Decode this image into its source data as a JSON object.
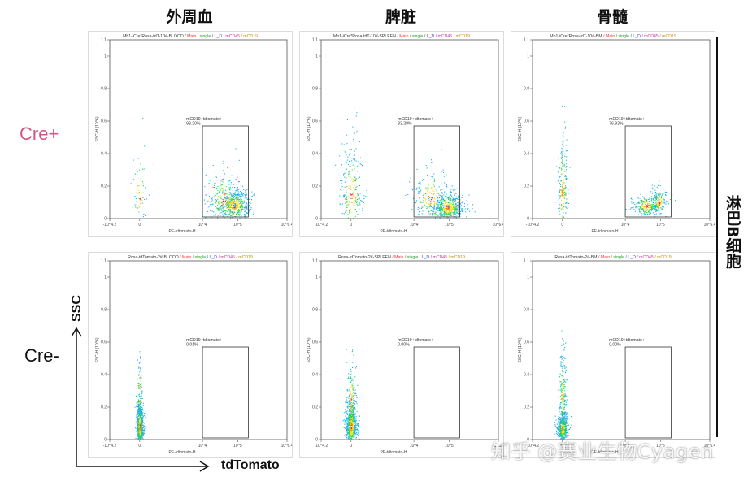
{
  "columns": [
    "外周血",
    "脾脏",
    "骨髓"
  ],
  "rows": [
    {
      "label": "Cre+",
      "color": "#d0568a"
    },
    {
      "label": "Cre-",
      "color": "#111111"
    }
  ],
  "side_label": "淋巴B细胞",
  "axis_labels": {
    "y": "SSC",
    "x": "tdTomato"
  },
  "watermark": "知乎 @赛业生物Cyagen",
  "chart_data": [
    {
      "type": "scatter",
      "title_parts": [
        "Mb1-iCre*Rosa-tdT-10#-BLOOD",
        " / Main",
        " / single",
        " / L_D",
        " / mCD45",
        " / mCD19"
      ],
      "xlabel": "PE-tdtomato-H",
      "ylabel": "SSC-H (10^6)",
      "gate_label": "mCD19+tdtomato+",
      "gate_pct": "98.20%",
      "gate_x": [
        10000,
        200000
      ],
      "gate_y": [
        0,
        0.57
      ],
      "xscale": "log",
      "xticks": [
        "-10^4.2",
        "0",
        "10^4",
        "10^5",
        "10^6.4"
      ],
      "yticks": [
        "0",
        "0.2",
        "0.4",
        "0.6",
        "0.8",
        "1",
        "1.1"
      ],
      "ylim": [
        0,
        1.1
      ],
      "populations": [
        {
          "x": 80000,
          "y": 0.08,
          "spread_x": 0.55,
          "spread_y": 0.06,
          "n": 520
        },
        {
          "x": 40000,
          "y": 0.12,
          "spread_x": 0.6,
          "spread_y": 0.1,
          "n": 220
        },
        {
          "x": 0,
          "y": 0.15,
          "spread_x": 0.25,
          "spread_y": 0.18,
          "n": 70
        }
      ]
    },
    {
      "type": "scatter",
      "title_parts": [
        "Mb1-iCre*Rosa-tdT-10#-SPLEEN",
        " / Main",
        " / single",
        " / L_D",
        " / mCD45",
        " / mCD19"
      ],
      "xlabel": "PE-tdtomato-H",
      "ylabel": "SSC-H (10^6)",
      "gate_label": "mCD19+tdtomato+",
      "gate_pct": "83.28%",
      "gate_x": [
        10000,
        200000
      ],
      "gate_y": [
        0,
        0.57
      ],
      "xscale": "log",
      "xticks": [
        "-10^4.2",
        "0",
        "10^4",
        "10^5",
        "10^6.4"
      ],
      "yticks": [
        "0",
        "0.2",
        "0.4",
        "0.6",
        "0.8",
        "1",
        "1.1"
      ],
      "ylim": [
        0,
        1.1
      ],
      "populations": [
        {
          "x": 90000,
          "y": 0.07,
          "spread_x": 0.55,
          "spread_y": 0.05,
          "n": 520
        },
        {
          "x": 0,
          "y": 0.15,
          "spread_x": 0.4,
          "spread_y": 0.18,
          "n": 260
        },
        {
          "x": 30000,
          "y": 0.13,
          "spread_x": 0.7,
          "spread_y": 0.1,
          "n": 200
        }
      ]
    },
    {
      "type": "scatter",
      "title_parts": [
        "Mb1-iCre*Rosa-tdT-10#-BM",
        " / Main",
        " / single",
        " / L_D",
        " / mCD45",
        " / mCD19"
      ],
      "xlabel": "PE-tdtomato-H",
      "ylabel": "SSC-H (10^6)",
      "gate_label": "mCD19+tdtomato+",
      "gate_pct": "76.93%",
      "gate_x": [
        10000,
        200000
      ],
      "gate_y": [
        0,
        0.57
      ],
      "xscale": "log",
      "xticks": [
        "-10^4.2",
        "0",
        "10^4",
        "10^5",
        "10^6.4"
      ],
      "yticks": [
        "0",
        "0.2",
        "0.4",
        "0.6",
        "0.8",
        "1",
        "1.1"
      ],
      "ylim": [
        0,
        1.1
      ],
      "populations": [
        {
          "x": 40000,
          "y": 0.08,
          "spread_x": 0.5,
          "spread_y": 0.04,
          "n": 260
        },
        {
          "x": 90000,
          "y": 0.1,
          "spread_x": 0.3,
          "spread_y": 0.05,
          "n": 150
        },
        {
          "x": 0,
          "y": 0.18,
          "spread_x": 0.18,
          "spread_y": 0.2,
          "n": 230
        }
      ]
    },
    {
      "type": "scatter",
      "title_parts": [
        "Rosa-tdTomato-2#-BLOOD",
        " / Main",
        " / single",
        " / L_D",
        " / mCD45",
        " / mCD19"
      ],
      "xlabel": "PE-tdtomato-H",
      "ylabel": "SSC-H (10^6)",
      "gate_label": "mCD19+tdtomato+",
      "gate_pct": "0.01%",
      "gate_x": [
        10000,
        200000
      ],
      "gate_y": [
        0,
        0.57
      ],
      "xscale": "log",
      "xticks": [
        "-10^4.2",
        "0",
        "10^4",
        "10^5",
        "10^6.4"
      ],
      "yticks": [
        "0",
        "0.2",
        "0.4",
        "0.6",
        "0.8",
        "1",
        "1.1"
      ],
      "ylim": [
        0,
        1.1
      ],
      "populations": [
        {
          "x": 0,
          "y": 0.08,
          "spread_x": 0.12,
          "spread_y": 0.08,
          "n": 700
        },
        {
          "x": 0,
          "y": 0.28,
          "spread_x": 0.1,
          "spread_y": 0.14,
          "n": 90
        }
      ]
    },
    {
      "type": "scatter",
      "title_parts": [
        "Rosa-tdTomato-2#-SPLEEN",
        " / Main",
        " / single",
        " / L_D",
        " / mCD45",
        " / mCD19"
      ],
      "xlabel": "PE-tdtomato-H",
      "ylabel": "SSC-H (10^6)",
      "gate_label": "mCD19+tdtomato+",
      "gate_pct": "0.00%",
      "gate_x": [
        10000,
        200000
      ],
      "gate_y": [
        0,
        0.57
      ],
      "xscale": "log",
      "xticks": [
        "-10^4.2",
        "0",
        "10^4",
        "10^5",
        "10^6.4"
      ],
      "yticks": [
        "0",
        "0.2",
        "0.4",
        "0.6",
        "0.8",
        "1",
        "1.1"
      ],
      "ylim": [
        0,
        1.1
      ],
      "populations": [
        {
          "x": 0,
          "y": 0.08,
          "spread_x": 0.2,
          "spread_y": 0.08,
          "n": 650
        },
        {
          "x": 0,
          "y": 0.25,
          "spread_x": 0.15,
          "spread_y": 0.14,
          "n": 160
        }
      ]
    },
    {
      "type": "scatter",
      "title_parts": [
        "Rosa-tdTomato-2#-BM",
        " / Main",
        " / single",
        " / L_D",
        " / mCD45",
        " / mCD19"
      ],
      "xlabel": "PE-tdtomato-H",
      "ylabel": "SSC-H (10^6)",
      "gate_label": "mCD19+tdtomato+",
      "gate_pct": "0.00%",
      "gate_x": [
        10000,
        200000
      ],
      "gate_y": [
        0,
        0.57
      ],
      "xscale": "log",
      "xticks": [
        "-10^4.2",
        "0",
        "10^4",
        "10^5",
        "10^6.4"
      ],
      "yticks": [
        "0",
        "0.2",
        "0.4",
        "0.6",
        "0.8",
        "1",
        "1.1"
      ],
      "ylim": [
        0,
        1.1
      ],
      "populations": [
        {
          "x": 0,
          "y": 0.07,
          "spread_x": 0.18,
          "spread_y": 0.05,
          "n": 500
        },
        {
          "x": 0,
          "y": 0.28,
          "spread_x": 0.12,
          "spread_y": 0.15,
          "n": 220
        }
      ]
    }
  ],
  "title_colors": [
    "#333333",
    "#ff2a2a",
    "#1a9a1a",
    "#3b3bd8",
    "#cc3399",
    "#cc8800"
  ]
}
